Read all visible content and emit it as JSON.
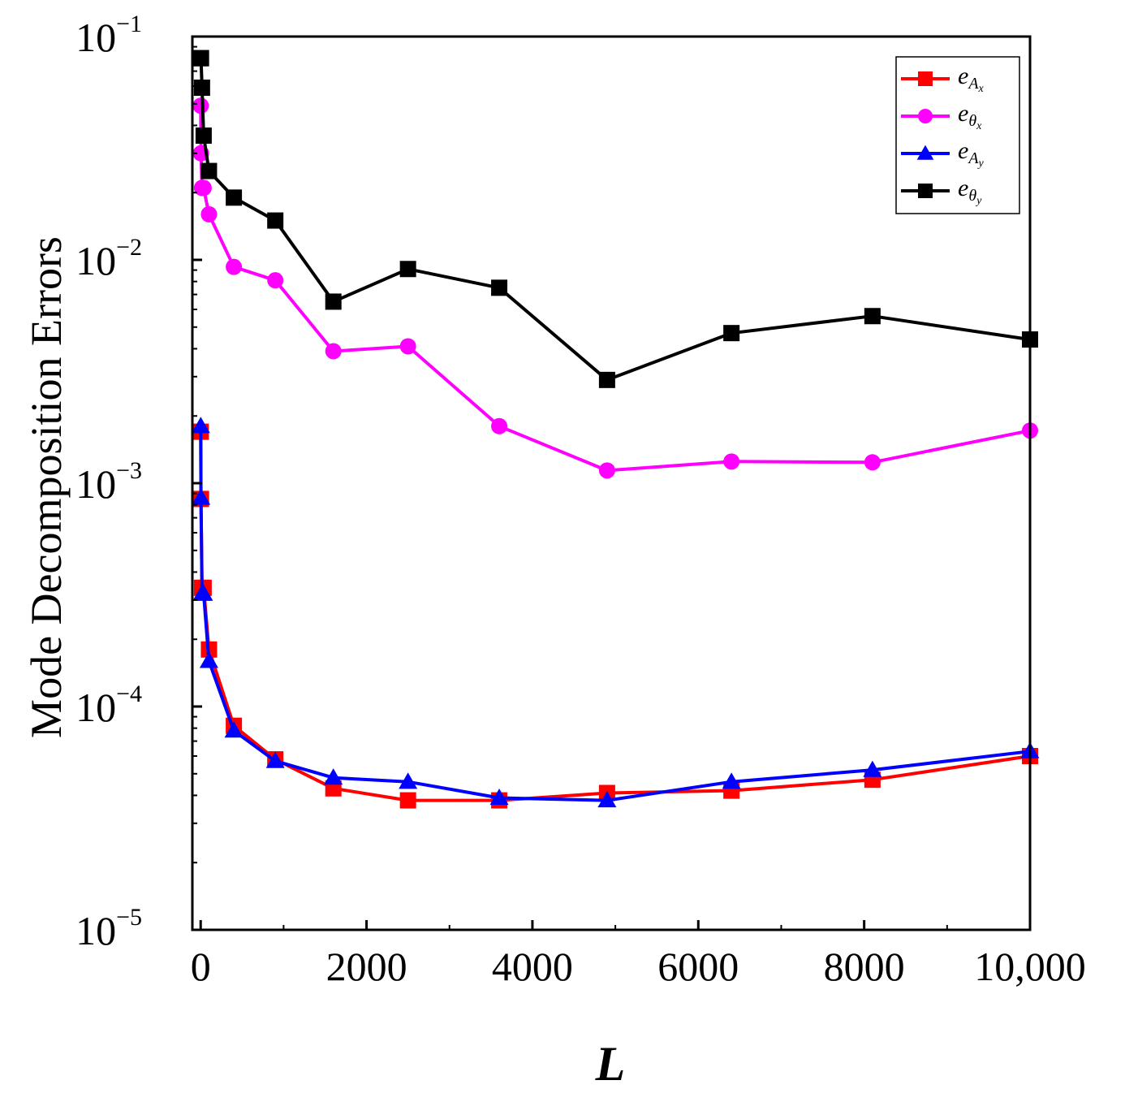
{
  "chart_data": {
    "type": "line",
    "title": "",
    "xlabel": "L",
    "ylabel": "Mode Decomposition Errors",
    "yscale": "log",
    "xlim": [
      -100,
      10000
    ],
    "ylim": [
      1e-05,
      0.1
    ],
    "x_ticks": [
      {
        "value": 0,
        "label": "0"
      },
      {
        "value": 2000,
        "label": "2000"
      },
      {
        "value": 4000,
        "label": "4000"
      },
      {
        "value": 6000,
        "label": "6000"
      },
      {
        "value": 8000,
        "label": "8000"
      },
      {
        "value": 10000,
        "label": "10,000"
      }
    ],
    "y_ticks": [
      {
        "value": 0.1,
        "base": "10",
        "exp": "−1"
      },
      {
        "value": 0.01,
        "base": "10",
        "exp": "−2"
      },
      {
        "value": 0.001,
        "base": "10",
        "exp": "−3"
      },
      {
        "value": 0.0001,
        "base": "10",
        "exp": "−4"
      },
      {
        "value": 1e-05,
        "base": "10",
        "exp": "−5"
      }
    ],
    "legend_position": "top-right",
    "series": [
      {
        "name": "e_Ax",
        "main": "e",
        "sub": "A",
        "subsub": "x",
        "color": "#ff0000",
        "marker": "square",
        "x": [
          1,
          4,
          16,
          36,
          100,
          400,
          900,
          1600,
          2500,
          3600,
          4900,
          6400,
          8100,
          10000
        ],
        "y": [
          0.0017,
          0.00085,
          0.00034,
          0.00034,
          0.00018,
          8.2e-05,
          5.8e-05,
          4.3e-05,
          3.8e-05,
          3.8e-05,
          4.1e-05,
          4.2e-05,
          4.7e-05,
          6e-05
        ]
      },
      {
        "name": "e_thetax",
        "main": "e",
        "sub": "θ",
        "subsub": "x",
        "color": "#ff00ff",
        "marker": "circle",
        "x": [
          1,
          4,
          16,
          36,
          100,
          400,
          900,
          1600,
          2500,
          3600,
          4900,
          6400,
          8100,
          10000
        ],
        "y": [
          0.049,
          0.03,
          0.021,
          0.021,
          0.016,
          0.0093,
          0.0081,
          0.0039,
          0.0041,
          0.0018,
          0.00114,
          0.00125,
          0.00124,
          0.00172
        ]
      },
      {
        "name": "e_Ay",
        "main": "e",
        "sub": "A",
        "subsub": "y",
        "color": "#0000ff",
        "marker": "triangle",
        "x": [
          1,
          4,
          16,
          36,
          100,
          400,
          900,
          1600,
          2500,
          3600,
          4900,
          6400,
          8100,
          10000
        ],
        "y": [
          0.0018,
          0.00086,
          0.00032,
          0.00032,
          0.00016,
          7.8e-05,
          5.7e-05,
          4.8e-05,
          4.6e-05,
          3.9e-05,
          3.8e-05,
          4.6e-05,
          5.2e-05,
          6.3e-05
        ]
      },
      {
        "name": "e_thetay",
        "main": "e",
        "sub": "θ",
        "subsub": "y",
        "color": "#000000",
        "marker": "square",
        "x": [
          1,
          4,
          16,
          36,
          100,
          400,
          900,
          1600,
          2500,
          3600,
          4900,
          6400,
          8100,
          10000
        ],
        "y": [
          0.08,
          0.08,
          0.059,
          0.036,
          0.025,
          0.019,
          0.015,
          0.0065,
          0.0091,
          0.0075,
          0.0029,
          0.0047,
          0.0056,
          0.0044
        ]
      }
    ]
  }
}
